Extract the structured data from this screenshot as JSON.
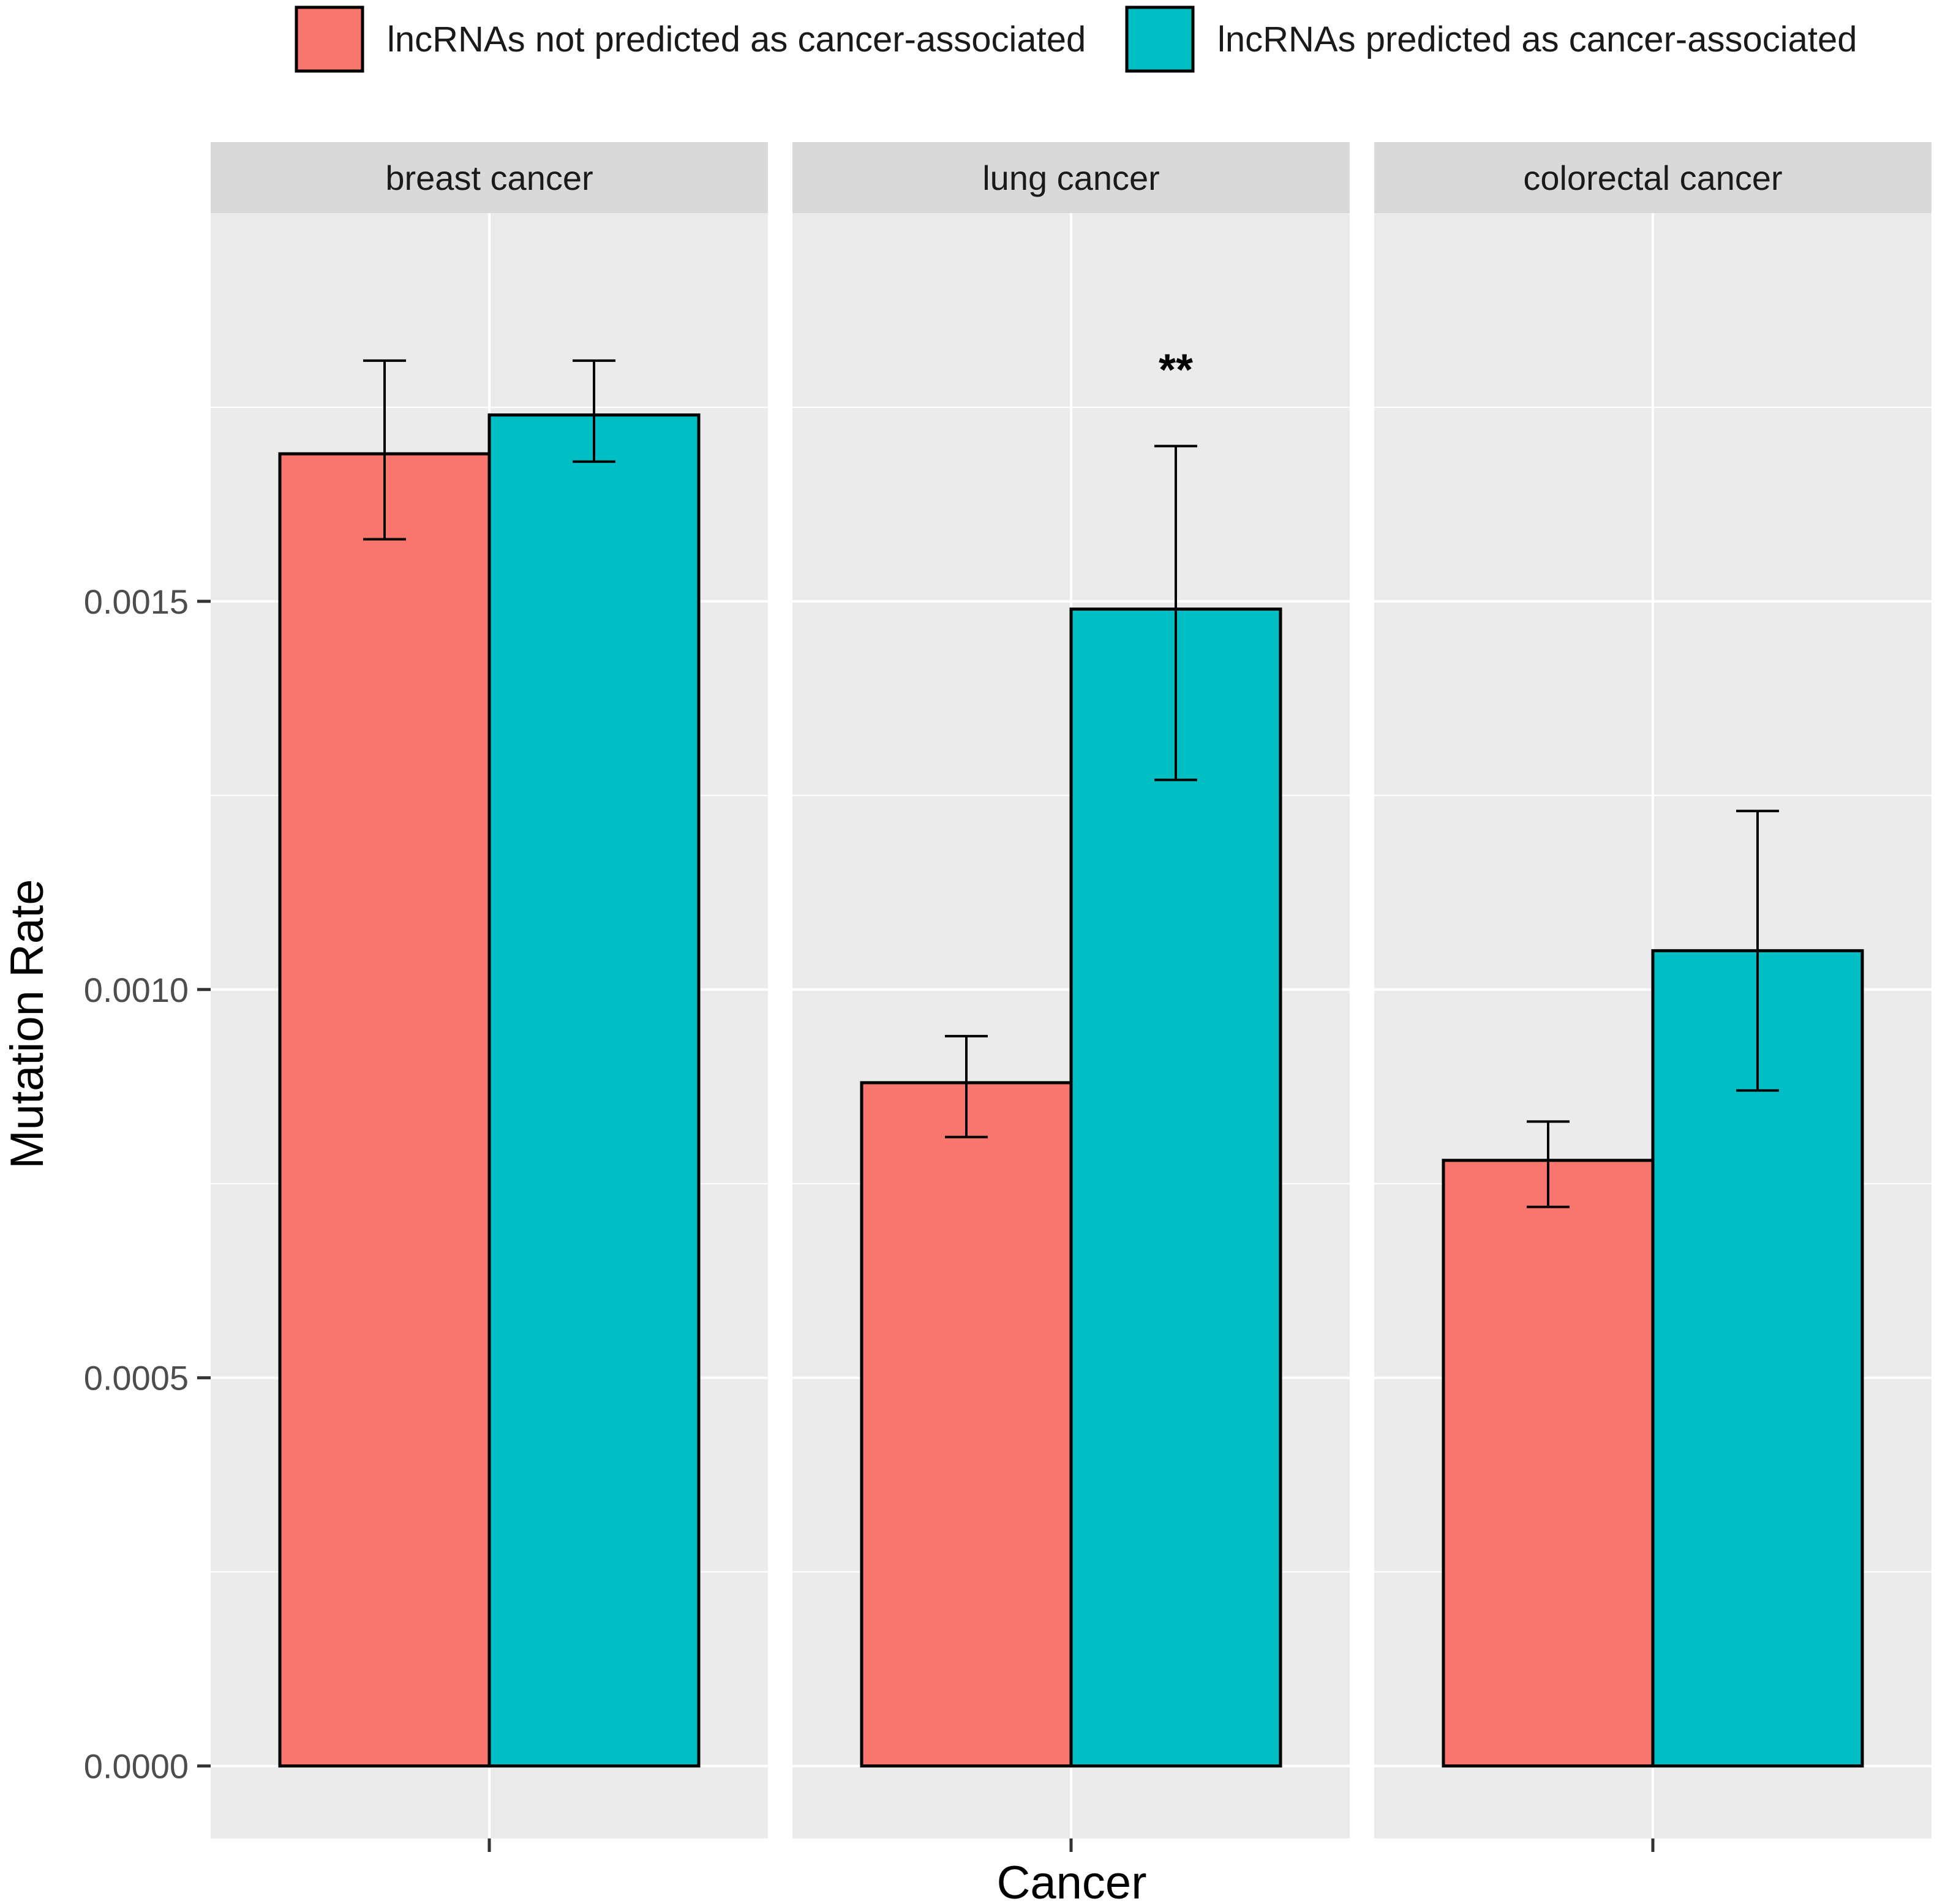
{
  "chart_data": {
    "type": "bar",
    "xlabel": "Cancer",
    "ylabel": "Mutation Rate",
    "ylim": [
      -9.34e-05,
      0.002
    ],
    "yticks": [
      0.0,
      0.0005,
      0.001,
      0.0015
    ],
    "ytick_labels": [
      "0.0000",
      "0.0005",
      "0.0010",
      "0.0015"
    ],
    "legend_position": "top",
    "series": [
      {
        "name": "lncRNAs not predicted as cancer-associated",
        "color": "#F8766D"
      },
      {
        "name": "lncRNAs predicted as cancer-associated",
        "color": "#00BFC4"
      }
    ],
    "panels": [
      {
        "title": "breast cancer",
        "bars": [
          {
            "series": 0,
            "value": 0.00169,
            "err_low": 0.00158,
            "err_high": 0.00181
          },
          {
            "series": 1,
            "value": 0.00174,
            "err_low": 0.00168,
            "err_high": 0.00181
          }
        ],
        "annotation": ""
      },
      {
        "title": "lung cancer",
        "bars": [
          {
            "series": 0,
            "value": 0.00088,
            "err_low": 0.00081,
            "err_high": 0.00094
          },
          {
            "series": 1,
            "value": 0.00149,
            "err_low": 0.00127,
            "err_high": 0.0017
          }
        ],
        "annotation": "**"
      },
      {
        "title": "colorectal cancer",
        "bars": [
          {
            "series": 0,
            "value": 0.00078,
            "err_low": 0.00072,
            "err_high": 0.00083
          },
          {
            "series": 1,
            "value": 0.00105,
            "err_low": 0.00087,
            "err_high": 0.00123
          }
        ],
        "annotation": ""
      }
    ]
  }
}
